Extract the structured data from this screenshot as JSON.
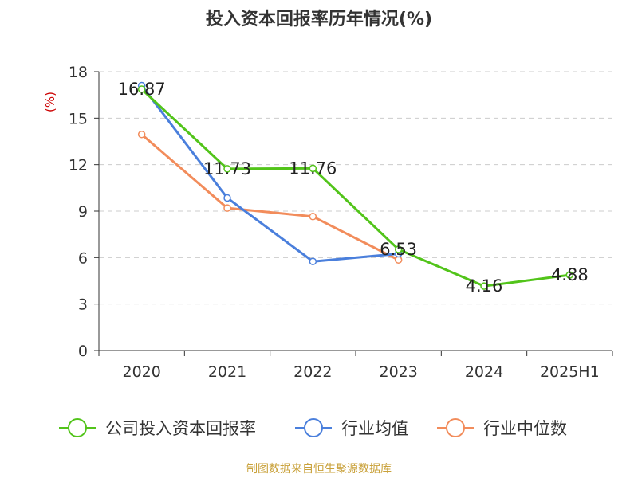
{
  "title": "投入资本回报率历年情况(%)",
  "source": "制图数据来自恒生聚源数据库",
  "chart_data": {
    "type": "line",
    "title": "投入资本回报率历年情况(%)",
    "ylabel": "(%)",
    "xlabel": "",
    "categories": [
      "2020",
      "2021",
      "2022",
      "2023",
      "2024",
      "2025H1"
    ],
    "ylim": [
      0,
      18
    ],
    "yticks": [
      0,
      3,
      6,
      9,
      12,
      15,
      18
    ],
    "grid": true,
    "legend_position": "bottom",
    "series": [
      {
        "name": "公司投入资本回报率",
        "color": "#52c41a",
        "values": [
          16.87,
          11.73,
          11.76,
          6.53,
          4.16,
          4.88
        ],
        "labels": [
          "16.87",
          "11.73",
          "11.76",
          "6.53",
          "4.16",
          "4.88"
        ]
      },
      {
        "name": "行业均值",
        "color": "#4a7fdc",
        "values": [
          17.1,
          9.85,
          5.75,
          6.25,
          null,
          null
        ],
        "labels": []
      },
      {
        "name": "行业中位数",
        "color": "#f28c5b",
        "values": [
          13.95,
          9.2,
          8.65,
          5.85,
          null,
          null
        ],
        "labels": []
      }
    ]
  }
}
